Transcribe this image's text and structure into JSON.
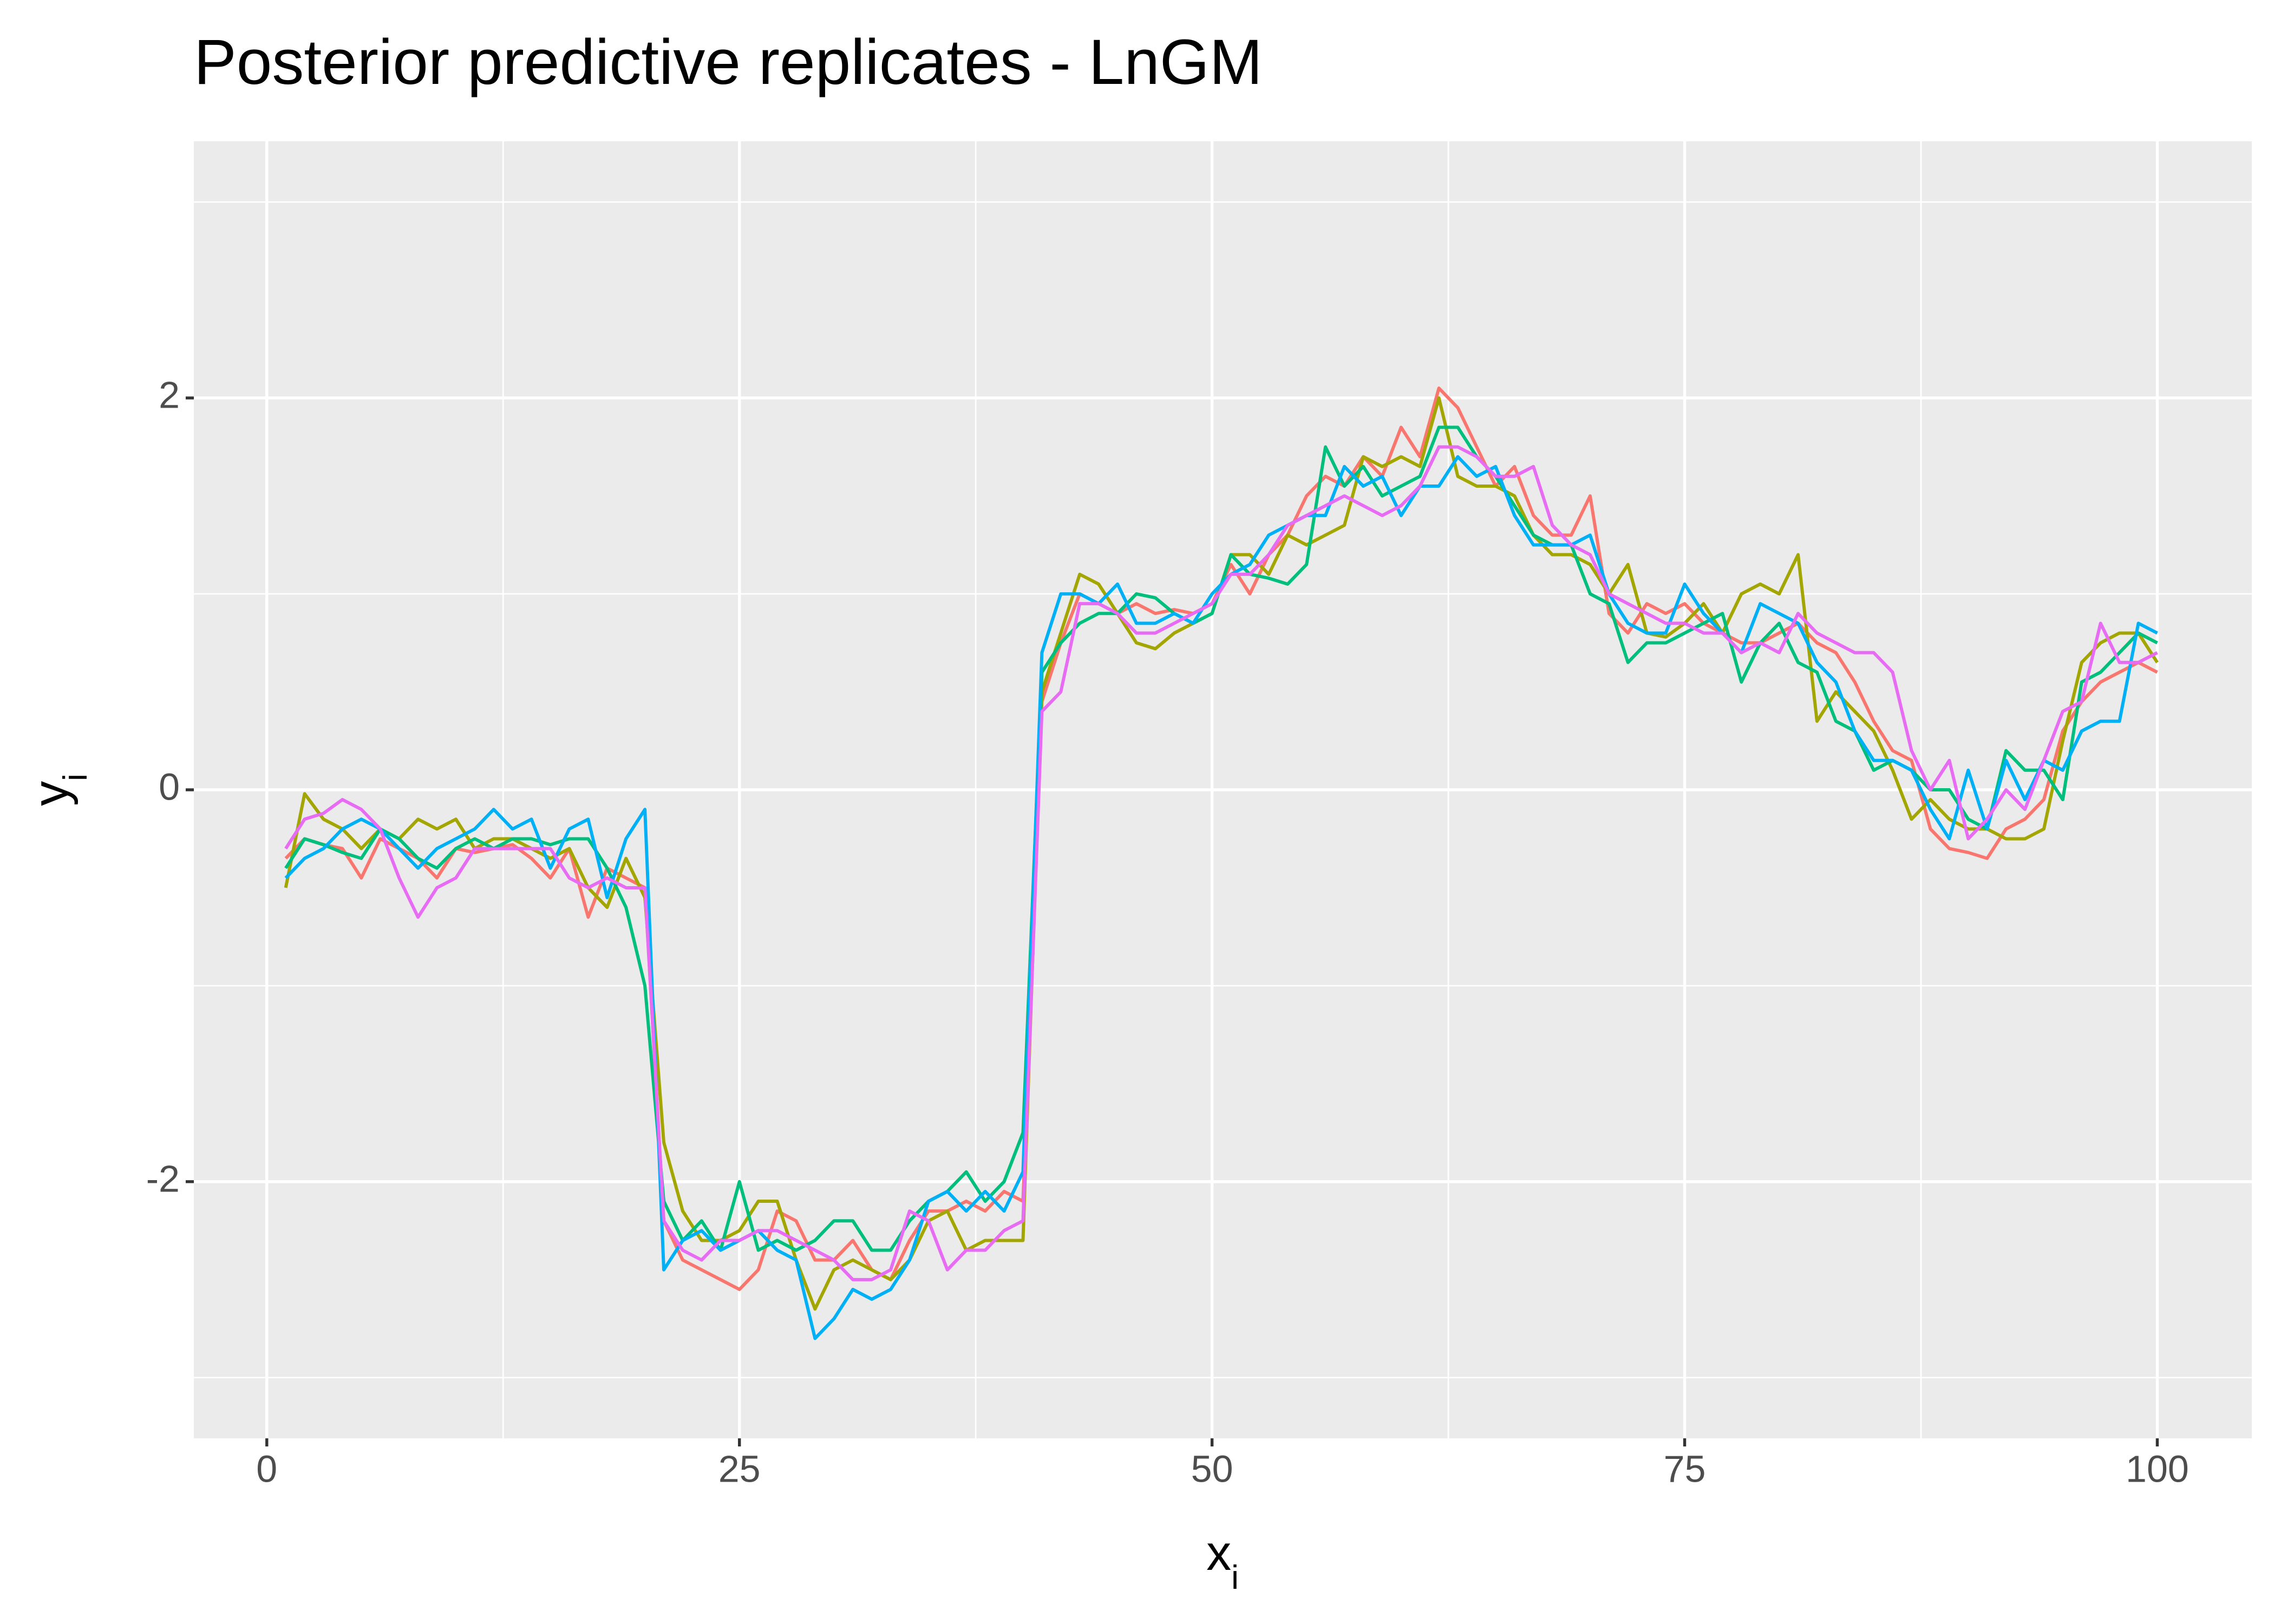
{
  "chart_data": {
    "type": "line",
    "title": "Posterior predictive replicates - LnGM",
    "x_label": {
      "text": "x",
      "subscript": "i"
    },
    "y_label": {
      "text": "y",
      "subscript": "i"
    },
    "x": [
      1,
      2,
      3,
      4,
      5,
      6,
      7,
      8,
      9,
      10,
      11,
      12,
      13,
      14,
      15,
      16,
      17,
      18,
      19,
      20,
      21,
      22,
      23,
      24,
      25,
      26,
      27,
      28,
      29,
      30,
      31,
      32,
      33,
      34,
      35,
      36,
      37,
      38,
      39,
      40,
      41,
      42,
      43,
      44,
      45,
      46,
      47,
      48,
      49,
      50,
      51,
      52,
      53,
      54,
      55,
      56,
      57,
      58,
      59,
      60,
      61,
      62,
      63,
      64,
      65,
      66,
      67,
      68,
      69,
      70,
      71,
      72,
      73,
      74,
      75,
      76,
      77,
      78,
      79,
      80,
      81,
      82,
      83,
      84,
      85,
      86,
      87,
      88,
      89,
      90,
      91,
      92,
      93,
      94,
      95,
      96,
      97,
      98,
      99,
      100
    ],
    "series": [
      {
        "color": "#F8766D",
        "values": [
          -0.35,
          -0.25,
          -0.28,
          -0.3,
          -0.45,
          -0.25,
          -0.3,
          -0.35,
          -0.45,
          -0.3,
          -0.32,
          -0.3,
          -0.28,
          -0.35,
          -0.45,
          -0.3,
          -0.65,
          -0.4,
          -0.45,
          -0.5,
          -2.2,
          -2.4,
          -2.45,
          -2.5,
          -2.55,
          -2.45,
          -2.15,
          -2.2,
          -2.4,
          -2.4,
          -2.3,
          -2.45,
          -2.5,
          -2.3,
          -2.15,
          -2.15,
          -2.1,
          -2.15,
          -2.05,
          -2.1,
          0.45,
          0.75,
          1.0,
          0.95,
          0.9,
          0.95,
          0.9,
          0.92,
          0.9,
          0.95,
          1.15,
          1.0,
          1.2,
          1.3,
          1.5,
          1.6,
          1.55,
          1.7,
          1.6,
          1.85,
          1.7,
          2.05,
          1.95,
          1.75,
          1.55,
          1.65,
          1.4,
          1.3,
          1.3,
          1.5,
          0.9,
          0.8,
          0.95,
          0.9,
          0.95,
          0.85,
          0.8,
          0.75,
          0.75,
          0.8,
          0.85,
          0.75,
          0.7,
          0.55,
          0.35,
          0.2,
          0.15,
          -0.2,
          -0.3,
          -0.32,
          -0.35,
          -0.2,
          -0.15,
          -0.05,
          0.3,
          0.45,
          0.55,
          0.6,
          0.65,
          0.6
        ]
      },
      {
        "color": "#A3A500",
        "values": [
          -0.5,
          -0.02,
          -0.15,
          -0.2,
          -0.3,
          -0.2,
          -0.25,
          -0.15,
          -0.2,
          -0.15,
          -0.3,
          -0.25,
          -0.25,
          -0.3,
          -0.35,
          -0.3,
          -0.5,
          -0.6,
          -0.35,
          -0.55,
          -1.8,
          -2.15,
          -2.3,
          -2.3,
          -2.25,
          -2.1,
          -2.1,
          -2.4,
          -2.65,
          -2.45,
          -2.4,
          -2.45,
          -2.5,
          -2.4,
          -2.2,
          -2.15,
          -2.35,
          -2.3,
          -2.3,
          -2.3,
          0.5,
          0.8,
          1.1,
          1.05,
          0.9,
          0.75,
          0.72,
          0.8,
          0.85,
          0.9,
          1.2,
          1.2,
          1.1,
          1.3,
          1.25,
          1.3,
          1.35,
          1.7,
          1.65,
          1.7,
          1.65,
          2.0,
          1.6,
          1.55,
          1.55,
          1.5,
          1.3,
          1.2,
          1.2,
          1.15,
          1.0,
          1.15,
          0.8,
          0.78,
          0.85,
          0.95,
          0.8,
          1.0,
          1.05,
          1.0,
          1.2,
          0.35,
          0.5,
          0.4,
          0.3,
          0.1,
          -0.15,
          -0.05,
          -0.15,
          -0.2,
          -0.2,
          -0.25,
          -0.25,
          -0.2,
          0.25,
          0.65,
          0.75,
          0.8,
          0.8,
          0.65
        ]
      },
      {
        "color": "#00BF7D",
        "values": [
          -0.4,
          -0.25,
          -0.28,
          -0.32,
          -0.35,
          -0.2,
          -0.25,
          -0.35,
          -0.4,
          -0.3,
          -0.25,
          -0.3,
          -0.25,
          -0.25,
          -0.28,
          -0.25,
          -0.25,
          -0.4,
          -0.6,
          -1.0,
          -2.1,
          -2.3,
          -2.2,
          -2.35,
          -2.0,
          -2.35,
          -2.3,
          -2.35,
          -2.3,
          -2.2,
          -2.2,
          -2.35,
          -2.35,
          -2.2,
          -2.1,
          -2.05,
          -1.95,
          -2.1,
          -2.0,
          -1.75,
          0.6,
          0.75,
          0.85,
          0.9,
          0.9,
          1.0,
          0.98,
          0.9,
          0.85,
          0.9,
          1.2,
          1.1,
          1.08,
          1.05,
          1.15,
          1.75,
          1.55,
          1.65,
          1.5,
          1.55,
          1.6,
          1.85,
          1.85,
          1.7,
          1.6,
          1.45,
          1.3,
          1.25,
          1.25,
          1.0,
          0.95,
          0.65,
          0.75,
          0.75,
          0.8,
          0.85,
          0.9,
          0.55,
          0.75,
          0.85,
          0.65,
          0.6,
          0.35,
          0.3,
          0.1,
          0.15,
          0.1,
          0.0,
          0.0,
          -0.15,
          -0.2,
          0.2,
          0.1,
          0.1,
          -0.05,
          0.55,
          0.6,
          0.7,
          0.8,
          0.75
        ]
      },
      {
        "color": "#00B0F6",
        "values": [
          -0.45,
          -0.35,
          -0.3,
          -0.2,
          -0.15,
          -0.2,
          -0.3,
          -0.4,
          -0.3,
          -0.25,
          -0.2,
          -0.1,
          -0.2,
          -0.15,
          -0.4,
          -0.2,
          -0.15,
          -0.55,
          -0.25,
          -0.1,
          -2.45,
          -2.3,
          -2.25,
          -2.35,
          -2.3,
          -2.25,
          -2.35,
          -2.4,
          -2.8,
          -2.7,
          -2.55,
          -2.6,
          -2.55,
          -2.4,
          -2.1,
          -2.05,
          -2.15,
          -2.05,
          -2.15,
          -1.95,
          0.7,
          1.0,
          1.0,
          0.95,
          1.05,
          0.85,
          0.85,
          0.9,
          0.85,
          1.0,
          1.1,
          1.15,
          1.3,
          1.35,
          1.4,
          1.4,
          1.65,
          1.55,
          1.6,
          1.4,
          1.55,
          1.55,
          1.7,
          1.6,
          1.65,
          1.4,
          1.25,
          1.25,
          1.25,
          1.3,
          1.0,
          0.85,
          0.8,
          0.8,
          1.05,
          0.9,
          0.8,
          0.7,
          0.95,
          0.9,
          0.85,
          0.65,
          0.55,
          0.3,
          0.15,
          0.15,
          0.1,
          -0.1,
          -0.25,
          0.1,
          -0.2,
          0.15,
          -0.05,
          0.15,
          0.1,
          0.3,
          0.35,
          0.35,
          0.85,
          0.8
        ]
      },
      {
        "color": "#E76BF3",
        "values": [
          -0.3,
          -0.15,
          -0.12,
          -0.05,
          -0.1,
          -0.2,
          -0.45,
          -0.65,
          -0.5,
          -0.45,
          -0.3,
          -0.3,
          -0.3,
          -0.3,
          -0.3,
          -0.45,
          -0.5,
          -0.45,
          -0.5,
          -0.5,
          -2.2,
          -2.35,
          -2.4,
          -2.3,
          -2.3,
          -2.25,
          -2.25,
          -2.3,
          -2.35,
          -2.4,
          -2.5,
          -2.5,
          -2.45,
          -2.15,
          -2.2,
          -2.45,
          -2.35,
          -2.35,
          -2.25,
          -2.2,
          0.4,
          0.5,
          0.95,
          0.95,
          0.9,
          0.8,
          0.8,
          0.85,
          0.9,
          0.95,
          1.1,
          1.1,
          1.2,
          1.35,
          1.4,
          1.45,
          1.5,
          1.45,
          1.4,
          1.45,
          1.55,
          1.75,
          1.75,
          1.7,
          1.6,
          1.6,
          1.65,
          1.35,
          1.25,
          1.2,
          1.0,
          0.95,
          0.9,
          0.85,
          0.85,
          0.8,
          0.8,
          0.7,
          0.75,
          0.7,
          0.9,
          0.8,
          0.75,
          0.7,
          0.7,
          0.6,
          0.2,
          0.0,
          0.15,
          -0.25,
          -0.15,
          0.0,
          -0.1,
          0.15,
          0.4,
          0.45,
          0.85,
          0.65,
          0.65,
          0.7
        ]
      }
    ],
    "xlim": [
      -3.86,
      105.0
    ],
    "xticks": [
      0,
      25,
      50,
      75,
      100
    ],
    "x_minor_ticks": [
      12.5,
      37.5,
      62.5,
      87.5
    ],
    "ylim": [
      -3.31,
      3.31
    ],
    "yticks": [
      -2,
      0,
      2
    ],
    "y_minor_ticks": [
      -3,
      -1,
      1,
      3
    ],
    "grid": true
  }
}
